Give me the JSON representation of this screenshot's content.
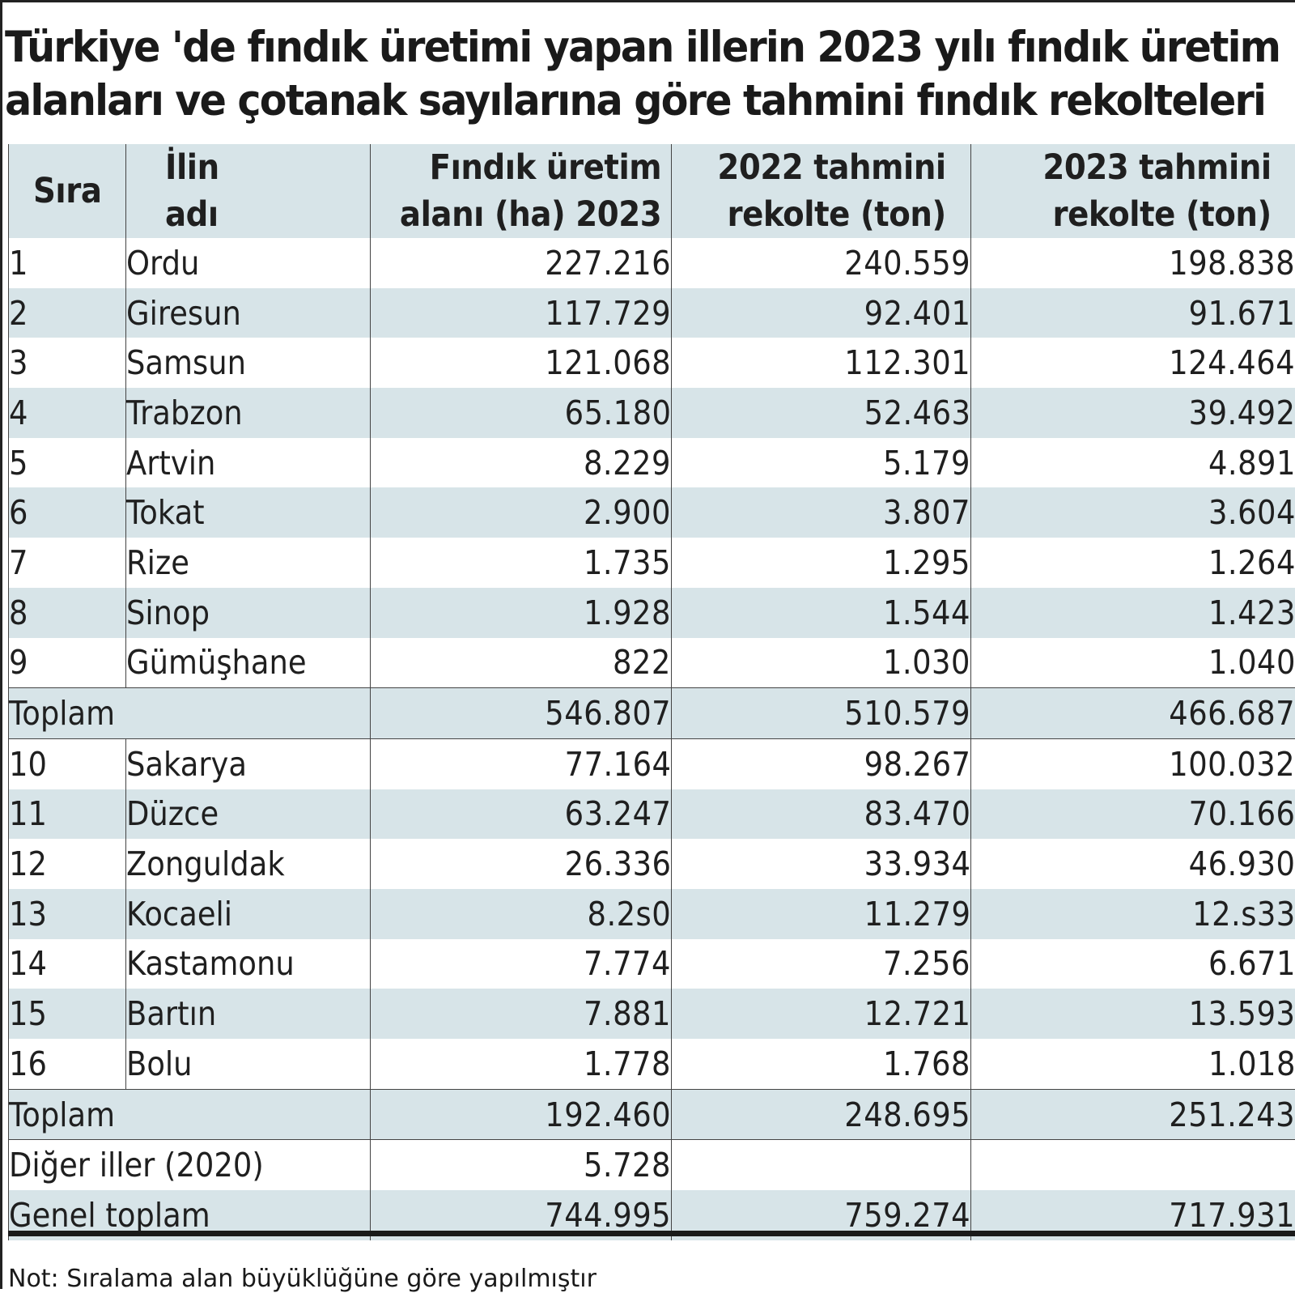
{
  "title": {
    "line1": "Türkiye 'de fındık üretimi yapan illerin 2023 yılı fındık üretim",
    "line2": "alanları ve çotanak sayılarına göre tahmini fındık rekolteleri"
  },
  "table": {
    "headers": {
      "rank": "Sıra",
      "province_line1": "İlin",
      "province_line2": "adı",
      "area_line1": "Fındık üretim",
      "area_line2": "alanı (ha) 2023",
      "y2022_line1": "2022 tahmini",
      "y2022_line2": "rekolte (ton)",
      "y2023_line1": "2023 tahmini",
      "y2023_line2": "rekolte (ton)"
    },
    "group1": [
      {
        "rank": "1",
        "name": "Ordu",
        "area": "227.216",
        "y2022": "240.559",
        "y2023": "198.838"
      },
      {
        "rank": "2",
        "name": "Giresun",
        "area": "117.729",
        "y2022": "92.401",
        "y2023": "91.671"
      },
      {
        "rank": "3",
        "name": "Samsun",
        "area": "121.068",
        "y2022": "112.301",
        "y2023": "124.464"
      },
      {
        "rank": "4",
        "name": "Trabzon",
        "area": "65.180",
        "y2022": "52.463",
        "y2023": "39.492"
      },
      {
        "rank": "5",
        "name": "Artvin",
        "area": "8.229",
        "y2022": "5.179",
        "y2023": "4.891"
      },
      {
        "rank": "6",
        "name": "Tokat",
        "area": "2.900",
        "y2022": "3.807",
        "y2023": "3.604"
      },
      {
        "rank": "7",
        "name": "Rize",
        "area": "1.735",
        "y2022": "1.295",
        "y2023": "1.264"
      },
      {
        "rank": "8",
        "name": "Sinop",
        "area": "1.928",
        "y2022": "1.544",
        "y2023": "1.423"
      },
      {
        "rank": "9",
        "name": "Gümüşhane",
        "area": "822",
        "y2022": "1.030",
        "y2023": "1.040"
      }
    ],
    "total1": {
      "label": "Toplam",
      "area": "546.807",
      "y2022": "510.579",
      "y2023": "466.687"
    },
    "group2": [
      {
        "rank": "10",
        "name": "Sakarya",
        "area": "77.164",
        "y2022": "98.267",
        "y2023": "100.032"
      },
      {
        "rank": "11",
        "name": "Düzce",
        "area": "63.247",
        "y2022": "83.470",
        "y2023": "70.166"
      },
      {
        "rank": "12",
        "name": "Zonguldak",
        "area": "26.336",
        "y2022": "33.934",
        "y2023": "46.930"
      },
      {
        "rank": "13",
        "name": "Kocaeli",
        "area": "8.2s0",
        "y2022": "11.279",
        "y2023": "12.s33"
      },
      {
        "rank": "14",
        "name": "Kastamonu",
        "area": "7.774",
        "y2022": "7.256",
        "y2023": "6.671"
      },
      {
        "rank": "15",
        "name": "Bartın",
        "area": "7.881",
        "y2022": "12.721",
        "y2023": "13.593"
      },
      {
        "rank": "16",
        "name": "Bolu",
        "area": "1.778",
        "y2022": "1.768",
        "y2023": "1.018"
      }
    ],
    "total2": {
      "label": "Toplam",
      "area": "192.460",
      "y2022": "248.695",
      "y2023": "251.243"
    },
    "other": {
      "label": "Diğer iller (2020)",
      "area": "5.728",
      "y2022": "",
      "y2023": ""
    },
    "grand": {
      "label": "Genel toplam",
      "area": "744.995",
      "y2022": "759.274",
      "y2023": "717.931"
    }
  },
  "note": "Not: Sıralama alan büyüklüğüne göre yapılmıştır",
  "colors": {
    "shade": "#d7e4e8",
    "text": "#1a1a1a"
  }
}
